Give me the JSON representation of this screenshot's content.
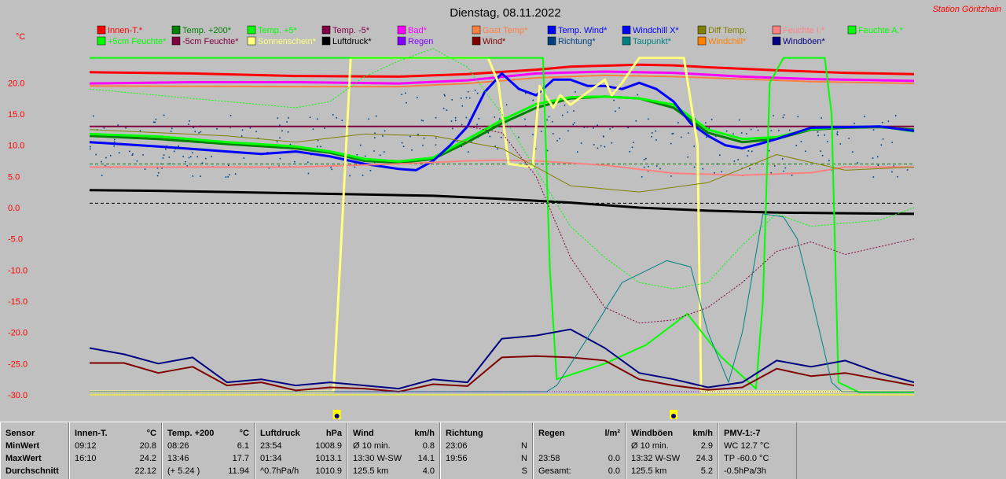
{
  "chart_data": {
    "type": "line",
    "title": "Dienstag, 08.11.2022",
    "station": "Station Göritzhain",
    "ylabel": "°C",
    "ylim": [
      -30,
      25
    ],
    "yticks": [
      "20.0",
      "15.0",
      "10.0",
      "5.0",
      "0.0",
      "-5.0",
      "-10.0",
      "-15.0",
      "-20.0",
      "-25.0",
      "-30.0"
    ],
    "ytick_values": [
      20,
      15,
      10,
      5,
      0,
      -5,
      -10,
      -15,
      -20,
      -25,
      -30
    ],
    "x_hours": [
      0,
      24
    ],
    "grid": false,
    "legend": [
      {
        "label": "Innen-T.*",
        "color": "#ff0000"
      },
      {
        "label": "Temp. +200*",
        "color": "#008000"
      },
      {
        "label": "Temp. +5*",
        "color": "#00ff00"
      },
      {
        "label": "Temp. -5*",
        "color": "#800040"
      },
      {
        "label": "Bad*",
        "color": "#ff00ff"
      },
      {
        "label": "Gast Temp*",
        "color": "#ff8040"
      },
      {
        "label": "Temp. Wind*",
        "color": "#0000ff"
      },
      {
        "label": "Windchill X*",
        "color": "#0000ff"
      },
      {
        "label": "Diff Temp.",
        "color": "#808000"
      },
      {
        "label": "Feuchte I.*",
        "color": "#ff8080"
      },
      {
        "label": "Feuchte A.*",
        "color": "#00ff00"
      },
      {
        "label": "+5cm Feuchte*",
        "color": "#00ff00"
      },
      {
        "label": "-5cm Feuchte*",
        "color": "#800040"
      },
      {
        "label": "Sonnenschein*",
        "color": "#ffff80"
      },
      {
        "label": "Luftdruck*",
        "color": "#000000"
      },
      {
        "label": "Regen",
        "color": "#8000ff"
      },
      {
        "label": "Wind*",
        "color": "#800000"
      },
      {
        "label": "Richtung*",
        "color": "#004080"
      },
      {
        "label": "Taupunkt*",
        "color": "#008080"
      },
      {
        "label": "Windchill*",
        "color": "#ff8000"
      },
      {
        "label": "Windböen*",
        "color": "#000080"
      }
    ],
    "series": [
      {
        "name": "Innen-T.*",
        "color": "#ff0000",
        "width": 3,
        "x": [
          0,
          3,
          6,
          9,
          11,
          13,
          14,
          16,
          17,
          18,
          20,
          22,
          24
        ],
        "y": [
          21.7,
          21.5,
          21.1,
          21.0,
          21.4,
          22.1,
          22.6,
          22.9,
          22.8,
          22.5,
          22.0,
          21.6,
          21.4
        ]
      },
      {
        "name": "Bad*",
        "color": "#ff00ff",
        "width": 3,
        "x": [
          0,
          3,
          6,
          9,
          11,
          13,
          15,
          17,
          19,
          21,
          24
        ],
        "y": [
          19.9,
          20.1,
          20.1,
          19.9,
          20.4,
          21.5,
          21.8,
          21.6,
          21.0,
          20.6,
          20.3
        ]
      },
      {
        "name": "Gast Temp*",
        "color": "#ff8040",
        "width": 2,
        "x": [
          0,
          6,
          9,
          11,
          13,
          15,
          17,
          19,
          21,
          24
        ],
        "y": [
          19.5,
          19.4,
          19.4,
          19.9,
          20.8,
          21.2,
          21.0,
          20.6,
          20.2,
          19.9
        ]
      },
      {
        "name": "Temp. -5*",
        "color": "#800040",
        "width": 2,
        "x": [
          0,
          24
        ],
        "y": [
          13.0,
          13.0
        ]
      },
      {
        "name": "Temp. +200*",
        "color": "#008000",
        "width": 3,
        "x": [
          0,
          2,
          4,
          6,
          7,
          8,
          9,
          10,
          11,
          12,
          13,
          14,
          15,
          16,
          17,
          18,
          19,
          20,
          21,
          22,
          23,
          24
        ],
        "y": [
          11.5,
          11.0,
          10.2,
          9.5,
          8.8,
          7.5,
          7.2,
          7.8,
          10.5,
          13.5,
          16.0,
          17.5,
          17.8,
          17.5,
          16.0,
          12.0,
          10.5,
          11.0,
          12.5,
          12.8,
          12.9,
          12.5
        ]
      },
      {
        "name": "Temp. +5*",
        "color": "#00ff00",
        "width": 3,
        "x": [
          0,
          2,
          4,
          6,
          7,
          8,
          9,
          10,
          11,
          12,
          13,
          14,
          15,
          16,
          17,
          18,
          19,
          20,
          21,
          22,
          23,
          24
        ],
        "y": [
          11.8,
          11.4,
          10.5,
          9.8,
          9.0,
          7.8,
          7.4,
          8.0,
          11.0,
          14.0,
          16.6,
          17.7,
          17.8,
          17.5,
          16.5,
          12.5,
          11.0,
          11.3,
          12.6,
          12.9,
          13.0,
          12.2
        ]
      },
      {
        "name": "Temp. Wind*",
        "color": "#0000ff",
        "width": 3,
        "x": [
          0,
          2,
          4,
          5,
          6,
          7,
          8,
          9,
          9.5,
          10,
          10.5,
          11,
          11.5,
          12,
          12.5,
          13,
          13.5,
          14,
          14.5,
          15,
          15.5,
          16,
          16.5,
          17,
          17.5,
          18,
          18.5,
          19,
          19.5,
          20,
          21,
          22,
          23,
          24
        ],
        "y": [
          10.5,
          9.8,
          9.0,
          8.6,
          9.0,
          8.2,
          7.0,
          6.2,
          6.0,
          7.5,
          10.0,
          13.0,
          18.5,
          21.5,
          19.0,
          18.0,
          20.5,
          20.5,
          19.5,
          19.5,
          19.0,
          20.0,
          19.0,
          17.0,
          13.5,
          11.5,
          10.0,
          9.5,
          10.2,
          11.0,
          12.8,
          12.9,
          13.0,
          12.3
        ]
      },
      {
        "name": "Feuchte I.*",
        "color": "#ff8080",
        "width": 2,
        "x": [
          0,
          6,
          9,
          11,
          12,
          13,
          15,
          17,
          19,
          21,
          22,
          24
        ],
        "y": [
          6.5,
          6.5,
          7.0,
          7.5,
          7.6,
          7.5,
          6.8,
          5.5,
          5.2,
          5.6,
          6.5,
          6.5
        ]
      },
      {
        "name": "Luftdruck*",
        "color": "#000000",
        "width": 3,
        "x": [
          0,
          2,
          4,
          6,
          8,
          10,
          12,
          14,
          16,
          18,
          20,
          22,
          24
        ],
        "y": [
          2.8,
          2.7,
          2.5,
          2.3,
          2.1,
          1.9,
          1.4,
          0.8,
          0.0,
          -0.5,
          -0.8,
          -0.9,
          -1.0
        ]
      },
      {
        "name": "Sonnenschein*",
        "color": "#ffff80",
        "width": 3,
        "x": [
          0,
          7.0,
          7.1,
          7.6,
          11.6,
          11.9,
          12.2,
          12.9,
          13.1,
          13.5,
          13.7,
          14.0,
          14.5,
          15.0,
          15.2,
          15.5,
          16.0,
          17.3,
          17.7,
          17.8,
          18.0,
          24
        ],
        "y": [
          -29.5,
          -29.5,
          -29.5,
          24.0,
          24.0,
          20.0,
          7.0,
          6.5,
          19.5,
          16.0,
          18.0,
          16.5,
          18.5,
          20.5,
          18.0,
          20.0,
          24.0,
          24.0,
          10.0,
          -29.5,
          -29.5,
          -29.5
        ]
      },
      {
        "name": "Feuchte A.*",
        "color": "#00ff00",
        "width": 2,
        "x": [
          0,
          13.2,
          13.4,
          13.6,
          15,
          16.2,
          17.4,
          18.4,
          19.4,
          19.6,
          19.8,
          20.2,
          21.4,
          21.6,
          21.8,
          22.4,
          24
        ],
        "y": [
          24.0,
          24.0,
          -10,
          -27.5,
          -25,
          -22,
          -17,
          -24,
          -29,
          -15,
          20,
          24,
          24,
          15,
          -28,
          -29.6,
          -29.6
        ]
      },
      {
        "name": "Wind*",
        "color": "#800000",
        "width": 2,
        "x": [
          0,
          1,
          2,
          3,
          4,
          5,
          6,
          7,
          8,
          9,
          10,
          11,
          12,
          13,
          14,
          15,
          16,
          17,
          18,
          19,
          20,
          21,
          22,
          23,
          24
        ],
        "y": [
          -24.9,
          -24.9,
          -26.5,
          -25.5,
          -28.5,
          -28.0,
          -29.3,
          -28.8,
          -29.0,
          -29.5,
          -28.3,
          -28.6,
          -24.0,
          -23.8,
          -24.0,
          -24.5,
          -27.5,
          -28.5,
          -29.2,
          -28.8,
          -25.8,
          -27.0,
          -26.5,
          -27.5,
          -28.5
        ]
      },
      {
        "name": "Windböen*",
        "color": "#000080",
        "width": 2,
        "x": [
          0,
          1,
          2,
          3,
          4,
          5,
          6,
          7,
          8,
          9,
          10,
          11,
          12,
          13,
          14,
          15,
          16,
          17,
          18,
          19,
          20,
          21,
          22,
          23,
          24
        ],
        "y": [
          -22.5,
          -23.5,
          -25.0,
          -24.0,
          -28.0,
          -27.5,
          -28.5,
          -28.0,
          -28.5,
          -29.0,
          -27.5,
          -28.0,
          -21.0,
          -20.5,
          -19.5,
          -22.5,
          -26.5,
          -27.5,
          -28.8,
          -28.0,
          -24.5,
          -25.5,
          -24.5,
          -26.5,
          -28.0
        ]
      },
      {
        "name": "Diff Temp.",
        "color": "#808000",
        "width": 1,
        "x": [
          0,
          4,
          6,
          8,
          10,
          12,
          14,
          16,
          18,
          20,
          22,
          24
        ],
        "y": [
          12.5,
          11.5,
          10.5,
          11.8,
          11.5,
          9.5,
          3.5,
          2.5,
          4.0,
          8.5,
          6.0,
          6.5
        ]
      },
      {
        "name": "+5cm Feuchte*",
        "color": "#00ff00",
        "width": 1,
        "dash": "2,2",
        "x": [
          0,
          2,
          4,
          6,
          7,
          8,
          9,
          10,
          11,
          12,
          13,
          14,
          15,
          16,
          17,
          18,
          19,
          20,
          21,
          22,
          23,
          24
        ],
        "y": [
          19.0,
          18.0,
          17.0,
          16.0,
          17.0,
          21.0,
          23.5,
          25.5,
          22.5,
          15.0,
          6.0,
          -3.0,
          -8.0,
          -12.0,
          -13.0,
          -12.0,
          -6.0,
          -1.0,
          -3.0,
          -2.5,
          -2.0,
          0.0
        ]
      },
      {
        "name": "-5cm Feuchte*",
        "color": "#800040",
        "width": 1,
        "dash": "2,2",
        "x": [
          0,
          11,
          12,
          13,
          14,
          15,
          16,
          17,
          18,
          19,
          20,
          21,
          22,
          24
        ],
        "y": [
          13.0,
          13.0,
          12.0,
          5.0,
          -8.0,
          -16.0,
          -18.5,
          -18.0,
          -16.0,
          -12.0,
          -7.0,
          -5.5,
          -7.5,
          -5.0
        ]
      },
      {
        "name": "Taupunkt*",
        "color": "#008080",
        "width": 1,
        "x": [
          0,
          13.3,
          13.6,
          14.6,
          15.5,
          16.8,
          17.5,
          18.0,
          18.6,
          19.0,
          19.6,
          20.2,
          20.6,
          21.0,
          21.6,
          21.9,
          24
        ],
        "y": [
          -29.5,
          -29.5,
          -28.5,
          -20.0,
          -12.0,
          -8.5,
          -9.5,
          -20.0,
          -28.0,
          -20.0,
          -1.0,
          -1.5,
          -5.0,
          -14.0,
          -28.0,
          -29.5,
          -29.5
        ]
      },
      {
        "name": "Regen",
        "color": "#8000ff",
        "width": 1,
        "dash": "1,2",
        "x": [
          0,
          24
        ],
        "y": [
          -29.5,
          -29.5
        ]
      }
    ],
    "hlines": [
      {
        "color": "#000000",
        "y": 0.7,
        "dash": "4,3"
      },
      {
        "color": "#008000",
        "y": 7.0,
        "dash": "4,3"
      }
    ],
    "scatter": {
      "color": "#004080",
      "x_range": [
        0,
        24
      ],
      "y_mean": 10,
      "y_spread": 5
    }
  },
  "panel": {
    "sensor": {
      "title": "Sensor",
      "min": "MinWert",
      "max": "MaxWert",
      "avg": "Durchschnitt"
    },
    "cols": [
      {
        "h1": "Innen-T.",
        "h2": "°C",
        "r1a": "09:12",
        "r1b": "20.8",
        "r2a": "16:10",
        "r2b": "24.2",
        "r3a": "",
        "r3b": "22.12",
        "w": 118
      },
      {
        "h1": "Temp. +200",
        "h2": "°C",
        "r1a": "08:26",
        "r1b": "6.1",
        "r2a": "13:46",
        "r2b": "17.7",
        "r3a": "(+ 5.24 )",
        "r3b": "11.94",
        "w": 118
      },
      {
        "h1": "Luftdruck",
        "h2": "hPa",
        "r1a": "23:54",
        "r1b": "1008.9",
        "r2a": "01:34",
        "r2b": "1013.1",
        "r3a": "^0.7hPa/h",
        "r3b": "1010.9",
        "w": 118
      },
      {
        "h1": "Wind",
        "h2": "km/h",
        "r1a": "Ø 10 min.",
        "r1b": "0.8",
        "r2a": "13:30  W-SW",
        "r2b": "14.1",
        "r3a": "125.5 km",
        "r3b": "4.0",
        "w": 118
      },
      {
        "h1": "Richtung",
        "h2": "",
        "r1a": "23:06",
        "r1b": "N",
        "r2a": "19:56",
        "r2b": "N",
        "r3a": "",
        "r3b": "S",
        "w": 118
      },
      {
        "h1": "Regen",
        "h2": "l/m²",
        "r1a": "",
        "r1b": "",
        "r2a": "23:58",
        "r2b": "0.0",
        "r3a": "Gesamt:",
        "r3b": "0.0",
        "w": 118
      },
      {
        "h1": "Windböen",
        "h2": "km/h",
        "r1a": "Ø 10 min.",
        "r1b": "2.9",
        "r2a": "13:32  W-SW",
        "r2b": "24.3",
        "r3a": "125.5 km",
        "r3b": "5.2",
        "w": 118
      },
      {
        "h1": "PMV-1:-7",
        "h2": "",
        "r1a": "WC 12.7 °C",
        "r1b": "",
        "r2a": "TP -60.0 °C",
        "r2b": "",
        "r3a": "-0.5hPa/3h",
        "r3b": "",
        "w": 100
      }
    ]
  }
}
